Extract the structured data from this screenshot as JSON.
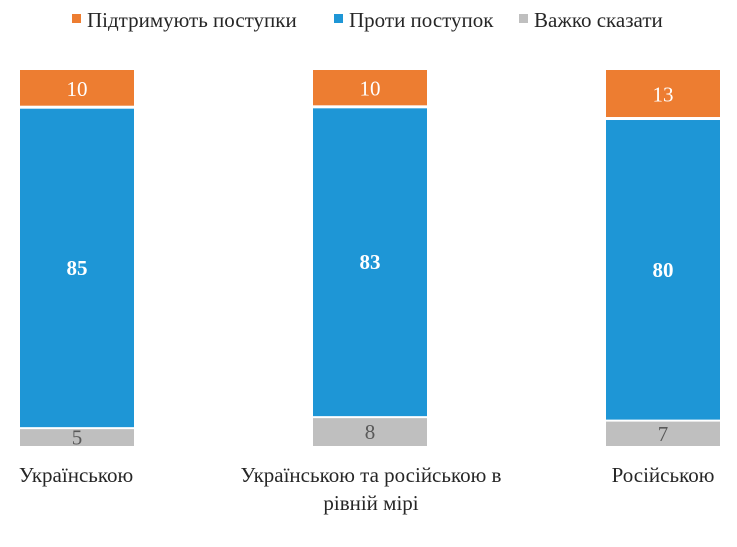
{
  "chart_data": {
    "type": "bar",
    "stacked": "percent",
    "orientation": "vertical",
    "categories": [
      [
        "Українською"
      ],
      [
        "Українською та російською в",
        "рівній мірі"
      ],
      [
        "Російською"
      ]
    ],
    "series": [
      {
        "name": "Підтримують поступки",
        "values": [
          10,
          10,
          13
        ],
        "color": "#ED7D31",
        "label_color": "#ffffff",
        "label_bold": false
      },
      {
        "name": "Проти поступок",
        "values": [
          85,
          83,
          80
        ],
        "color": "#1E96D6",
        "label_color": "#ffffff",
        "label_bold": true
      },
      {
        "name": "Важко сказати",
        "values": [
          5,
          8,
          7
        ],
        "color": "#BFBFBF",
        "label_color": "#595959",
        "label_bold": false
      }
    ],
    "stack_order_bottom_to_top": [
      "Важко сказати",
      "Проти поступок",
      "Підтримують поступки"
    ],
    "legend_position": "top",
    "grid": false,
    "axes_visible": false,
    "ylim": [
      0,
      100
    ]
  }
}
